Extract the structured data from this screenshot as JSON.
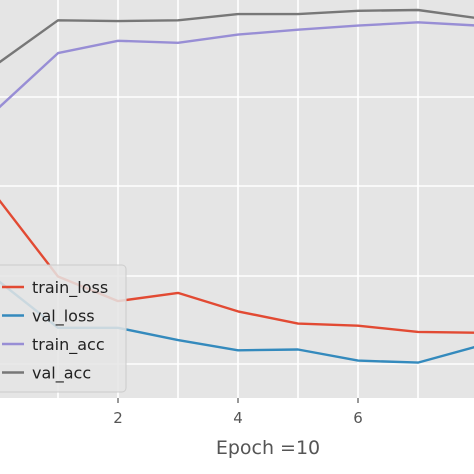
{
  "chart_data": {
    "type": "line",
    "title": "",
    "xlabel": "Epoch =10",
    "ylabel": "",
    "x": [
      0,
      1,
      2,
      3,
      4,
      5,
      6,
      7,
      8
    ],
    "xlim": [
      0,
      8
    ],
    "ylim": [
      0,
      1
    ],
    "xticks": [
      2,
      4,
      6
    ],
    "xtick_labels": [
      "2",
      "4",
      "6"
    ],
    "grid": true,
    "legend_position": "lower-left",
    "series": [
      {
        "name": "train_loss",
        "color": "#e24a33",
        "values": [
          0.54,
          0.35,
          0.29,
          0.31,
          0.265,
          0.235,
          0.23,
          0.215,
          0.213
        ]
      },
      {
        "name": "val_loss",
        "color": "#348abd",
        "values": [
          0.34,
          0.225,
          0.225,
          0.195,
          0.17,
          0.172,
          0.145,
          0.14,
          0.18
        ]
      },
      {
        "name": "train_acc",
        "color": "#988ed5",
        "values": [
          0.76,
          0.895,
          0.925,
          0.92,
          0.94,
          0.952,
          0.962,
          0.97,
          0.962
        ]
      },
      {
        "name": "val_acc",
        "color": "#777777",
        "values": [
          0.87,
          0.975,
          0.973,
          0.975,
          0.99,
          0.99,
          0.998,
          1.0,
          0.98
        ]
      }
    ]
  }
}
